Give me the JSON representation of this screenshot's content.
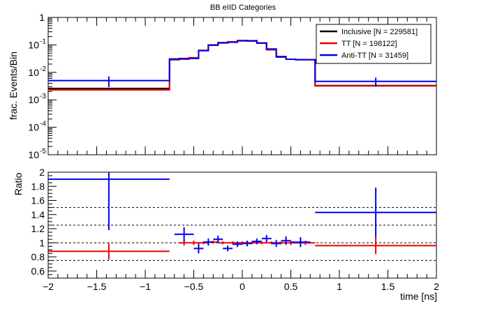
{
  "chart_data": [
    {
      "type": "step",
      "title": "BB eIID Categories",
      "ylabel": "frac. Events/Bin",
      "xlabel": "",
      "yscale": "log",
      "ylim": [
        1e-05,
        1
      ],
      "xlim": [
        -2,
        2
      ],
      "y_ticks": [
        {
          "value": 1,
          "label": "1"
        },
        {
          "value": 0.1,
          "label": "10",
          "exp": "-1"
        },
        {
          "value": 0.01,
          "label": "10",
          "exp": "-2"
        },
        {
          "value": 0.001,
          "label": "10",
          "exp": "-3"
        },
        {
          "value": 0.0001,
          "label": "10",
          "exp": "-4"
        },
        {
          "value": 1e-05,
          "label": "10",
          "exp": "-5"
        }
      ],
      "legend_position": "top-right",
      "bin_edges": [
        -2,
        -0.75,
        -0.65,
        -0.55,
        -0.45,
        -0.35,
        -0.25,
        -0.15,
        -0.05,
        0.05,
        0.15,
        0.25,
        0.35,
        0.45,
        0.55,
        0.75,
        2
      ],
      "series": [
        {
          "name": "Inclusive [N = 229581]",
          "color": "#000000",
          "values": [
            0.0026,
            0.029,
            0.03,
            0.034,
            0.062,
            0.098,
            0.118,
            0.128,
            0.142,
            0.138,
            0.118,
            0.066,
            0.038,
            0.03,
            0.029,
            0.0033
          ]
        },
        {
          "name": "TT [N = 198122]",
          "color": "#ee0000",
          "values": [
            0.0023,
            0.03,
            0.03,
            0.034,
            0.063,
            0.1,
            0.118,
            0.13,
            0.145,
            0.14,
            0.118,
            0.066,
            0.037,
            0.03,
            0.029,
            0.0032
          ]
        },
        {
          "name": "Anti-TT [N = 31459]",
          "color": "#0000ee",
          "values": [
            0.005,
            0.031,
            0.032,
            0.032,
            0.062,
            0.097,
            0.121,
            0.125,
            0.14,
            0.142,
            0.115,
            0.071,
            0.036,
            0.03,
            0.029,
            0.0047
          ],
          "errors": [
            {
              "bin": 0,
              "err": 0.0021
            },
            {
              "bin": 15,
              "err": 0.0017
            }
          ]
        }
      ]
    },
    {
      "type": "ratio",
      "ylabel": "Ratio",
      "xlabel": "time [ns]",
      "ylim": [
        0.5,
        2
      ],
      "xlim": [
        -2,
        2
      ],
      "x_ticks": [
        "−2",
        "−1.5",
        "−1",
        "−0.5",
        "0",
        "0.5",
        "1",
        "1.5",
        "2"
      ],
      "y_ticks": [
        "0.6",
        "0.8",
        "1",
        "1.2",
        "1.4",
        "1.6",
        "1.8",
        "2"
      ],
      "reference_lines": [
        0.75,
        1.0,
        1.25,
        1.5
      ],
      "series": [
        {
          "name": "TT",
          "color": "#ee0000",
          "points": [
            {
              "x": -1.375,
              "xerr": 0.625,
              "y": 0.88,
              "yerr": 0.12
            },
            {
              "x": -0.6,
              "xerr": 0.05,
              "y": 1.0,
              "yerr": 0.04
            },
            {
              "x": -0.5,
              "xerr": 0.05,
              "y": 1.0,
              "yerr": 0.03
            },
            {
              "x": -0.4,
              "xerr": 0.05,
              "y": 1.0,
              "yerr": 0.02
            },
            {
              "x": -0.3,
              "xerr": 0.05,
              "y": 1.01,
              "yerr": 0.02
            },
            {
              "x": -0.2,
              "xerr": 0.05,
              "y": 1.0,
              "yerr": 0.02
            },
            {
              "x": -0.1,
              "xerr": 0.05,
              "y": 1.0,
              "yerr": 0.02
            },
            {
              "x": 0.0,
              "xerr": 0.05,
              "y": 1.0,
              "yerr": 0.02
            },
            {
              "x": 0.1,
              "xerr": 0.05,
              "y": 1.0,
              "yerr": 0.02
            },
            {
              "x": 0.2,
              "xerr": 0.05,
              "y": 1.0,
              "yerr": 0.02
            },
            {
              "x": 0.3,
              "xerr": 0.05,
              "y": 1.0,
              "yerr": 0.02
            },
            {
              "x": 0.4,
              "xerr": 0.05,
              "y": 1.0,
              "yerr": 0.02
            },
            {
              "x": 0.5,
              "xerr": 0.05,
              "y": 1.0,
              "yerr": 0.03
            },
            {
              "x": 0.65,
              "xerr": 0.1,
              "y": 1.0,
              "yerr": 0.03
            },
            {
              "x": 1.375,
              "xerr": 0.625,
              "y": 0.96,
              "yerr": 0.12
            }
          ]
        },
        {
          "name": "Anti-TT",
          "color": "#0000ee",
          "points": [
            {
              "x": -1.375,
              "xerr": 0.625,
              "y": 1.9,
              "yerr": 0.72
            },
            {
              "x": -0.6,
              "xerr": 0.1,
              "y": 1.12,
              "yerr": 0.1
            },
            {
              "x": -0.45,
              "xerr": 0.05,
              "y": 0.92,
              "yerr": 0.07
            },
            {
              "x": -0.35,
              "xerr": 0.05,
              "y": 1.01,
              "yerr": 0.05
            },
            {
              "x": -0.25,
              "xerr": 0.05,
              "y": 1.05,
              "yerr": 0.05
            },
            {
              "x": -0.15,
              "xerr": 0.05,
              "y": 0.92,
              "yerr": 0.04
            },
            {
              "x": -0.05,
              "xerr": 0.05,
              "y": 0.98,
              "yerr": 0.04
            },
            {
              "x": 0.05,
              "xerr": 0.05,
              "y": 0.99,
              "yerr": 0.04
            },
            {
              "x": 0.15,
              "xerr": 0.05,
              "y": 1.02,
              "yerr": 0.04
            },
            {
              "x": 0.25,
              "xerr": 0.05,
              "y": 1.06,
              "yerr": 0.05
            },
            {
              "x": 0.35,
              "xerr": 0.05,
              "y": 0.99,
              "yerr": 0.05
            },
            {
              "x": 0.45,
              "xerr": 0.05,
              "y": 1.03,
              "yerr": 0.06
            },
            {
              "x": 0.6,
              "xerr": 0.1,
              "y": 1.01,
              "yerr": 0.07
            },
            {
              "x": 1.375,
              "xerr": 0.625,
              "y": 1.43,
              "yerr": 0.35
            }
          ]
        }
      ]
    }
  ]
}
